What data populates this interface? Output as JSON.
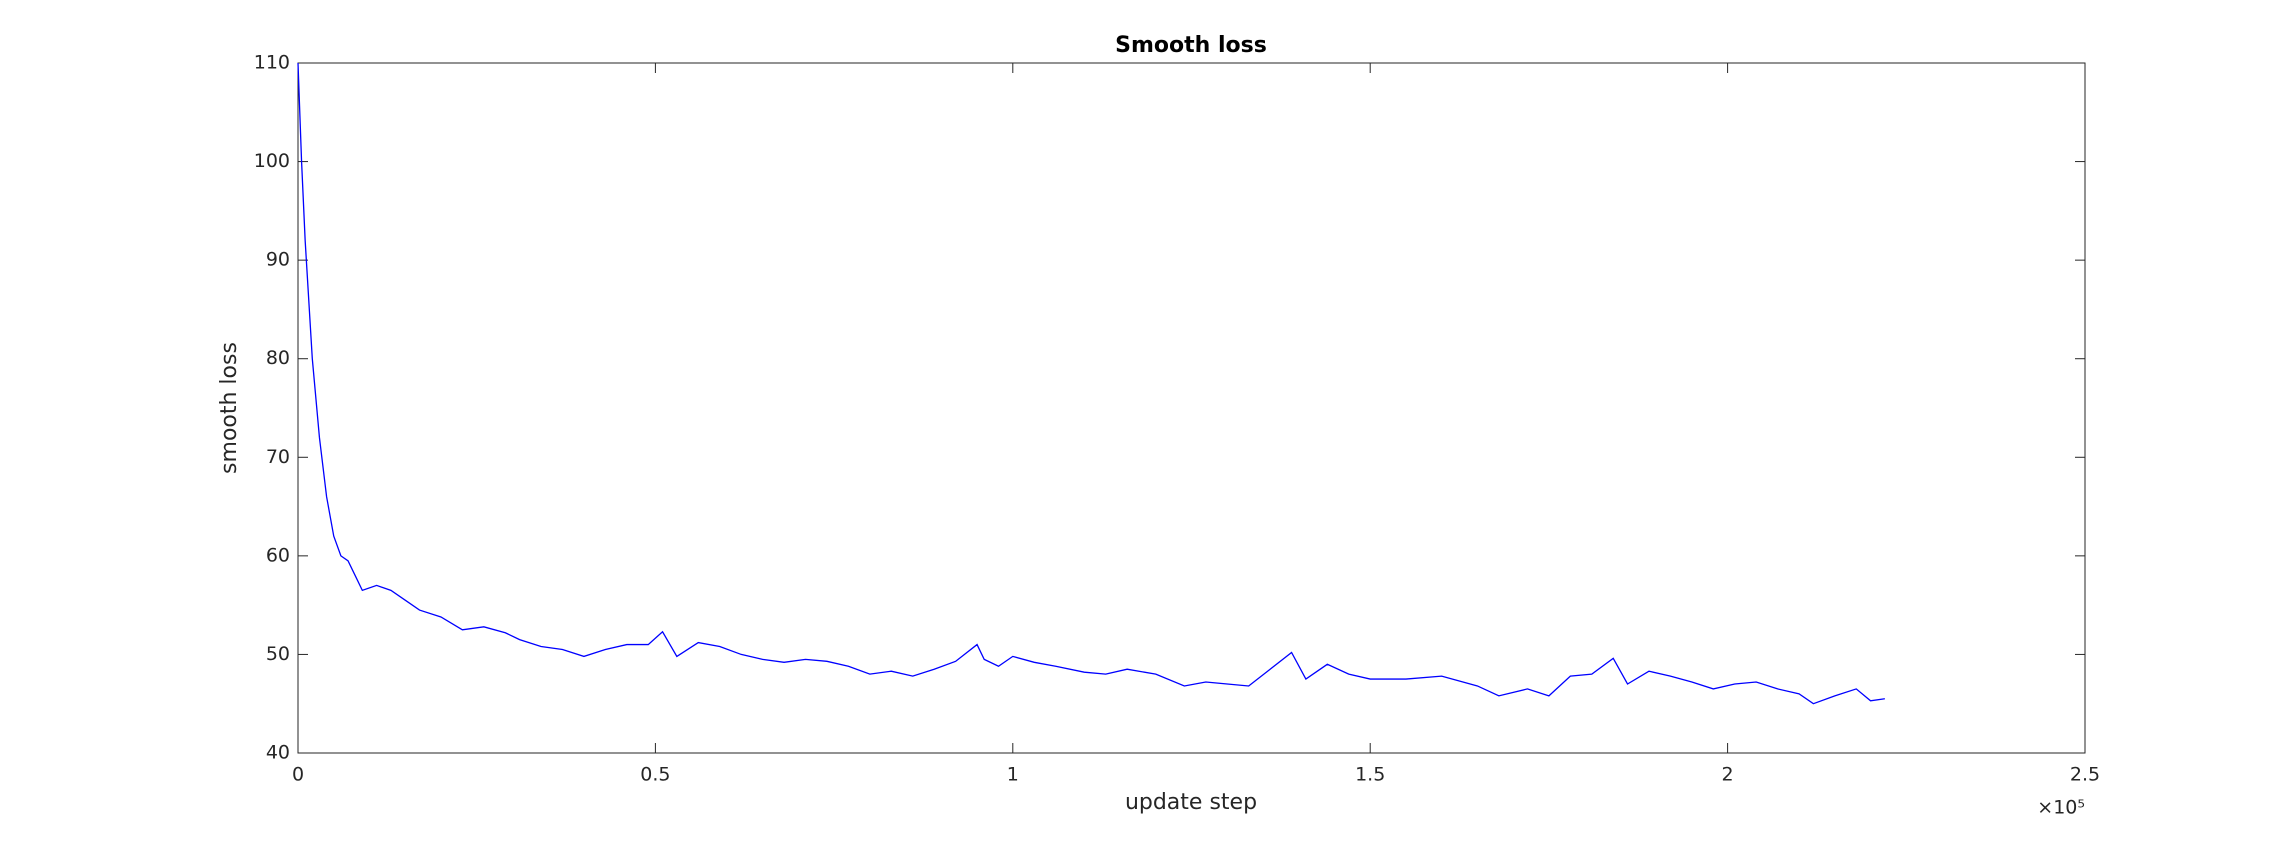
{
  "chart_data": {
    "type": "line",
    "title": "Smooth loss",
    "xlabel": "update step",
    "ylabel": "smooth loss",
    "x_multiplier": "×10⁵",
    "x": [
      0,
      500,
      1000,
      2000,
      3000,
      4000,
      5000,
      6000,
      7000,
      8000,
      9000,
      11000,
      13000,
      15000,
      17000,
      20000,
      23000,
      26000,
      29000,
      31000,
      34000,
      37000,
      40000,
      43000,
      46000,
      49000,
      51000,
      53000,
      56000,
      59000,
      62000,
      65000,
      68000,
      71000,
      74000,
      77000,
      80000,
      83000,
      86000,
      89000,
      92000,
      95000,
      96000,
      98000,
      100000,
      103000,
      106000,
      110000,
      113000,
      116000,
      120000,
      124000,
      127000,
      130000,
      133000,
      136000,
      139000,
      141000,
      144000,
      147000,
      150000,
      155000,
      160000,
      165000,
      168000,
      172000,
      175000,
      178000,
      181000,
      184000,
      186000,
      189000,
      192000,
      195000,
      198000,
      201000,
      204000,
      207000,
      210000,
      212000,
      215000,
      218000,
      220000,
      222000
    ],
    "series": [
      {
        "name": "smooth loss",
        "color": "#0000ff",
        "values": [
          110,
          100,
          92,
          80,
          72,
          66,
          62,
          60,
          59.5,
          58,
          56.5,
          57,
          56.5,
          55.5,
          54.5,
          53.8,
          52.5,
          52.8,
          52.2,
          51.5,
          50.8,
          50.5,
          49.8,
          50.5,
          51,
          51,
          52.3,
          49.8,
          51.2,
          50.8,
          50,
          49.5,
          49.2,
          49.5,
          49.3,
          48.8,
          48,
          48.3,
          47.8,
          48.5,
          49.3,
          51,
          49.5,
          48.8,
          49.8,
          49.2,
          48.8,
          48.2,
          48,
          48.5,
          48,
          46.8,
          47.2,
          47,
          46.8,
          48.5,
          50.2,
          47.5,
          49,
          48,
          47.5,
          47.5,
          47.8,
          46.8,
          45.8,
          46.5,
          45.8,
          47.8,
          48,
          49.6,
          47,
          48.3,
          47.8,
          47.2,
          46.5,
          47,
          47.2,
          46.5,
          46,
          45,
          45.8,
          46.5,
          45.3,
          45.5
        ]
      }
    ],
    "xlim": [
      0,
      250000
    ],
    "xticks": [
      0,
      {
        "value": 50000,
        "label": "0.5"
      },
      {
        "value": 100000,
        "label": "1"
      },
      {
        "value": 150000,
        "label": "1.5"
      },
      {
        "value": 200000,
        "label": "2"
      },
      {
        "value": 250000,
        "label": "2.5"
      }
    ],
    "ylim": [
      40,
      110
    ],
    "yticks": [
      40,
      50,
      60,
      70,
      80,
      90,
      100,
      110
    ],
    "grid": false
  }
}
